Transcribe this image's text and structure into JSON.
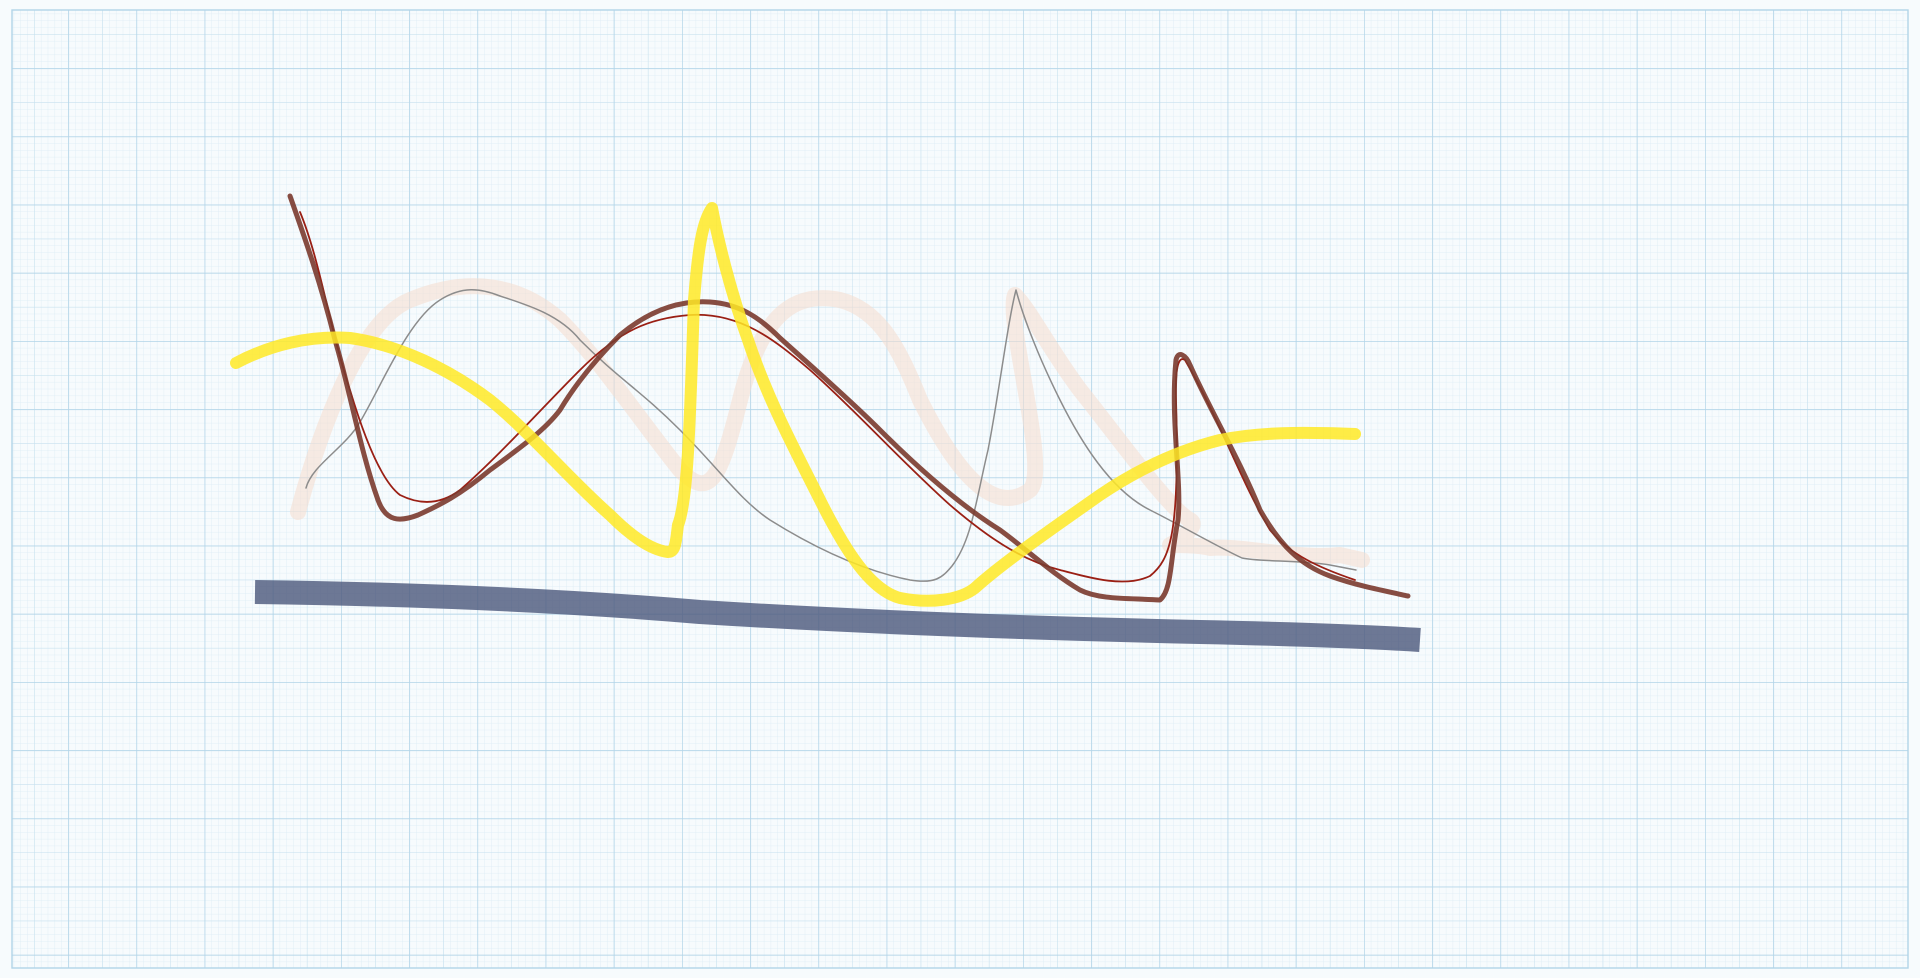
{
  "app": {
    "title": ""
  },
  "paper": {
    "background": "#f7fbfd",
    "grid_color_minor": "#dcecf5",
    "grid_color_mid": "#c4dfee",
    "grid_color_major": "#b2d4e8"
  },
  "strokes": [
    {
      "name": "peach-highlighter-stroke",
      "tool": "highlighter",
      "color": "#f5dccd"
    },
    {
      "name": "gray-thin-pen-stroke",
      "tool": "pen",
      "color": "#8c8c8c"
    },
    {
      "name": "dark-red-thin-pen-stroke",
      "tool": "pen",
      "color": "#9a1f14"
    },
    {
      "name": "brown-pencil-stroke",
      "tool": "pencil",
      "color": "#7a3a2e"
    },
    {
      "name": "yellow-highlighter-stroke",
      "tool": "highlighter",
      "color": "#ffe926"
    },
    {
      "name": "slate-marker-stroke",
      "tool": "marker",
      "color": "#4e5a7e"
    }
  ]
}
